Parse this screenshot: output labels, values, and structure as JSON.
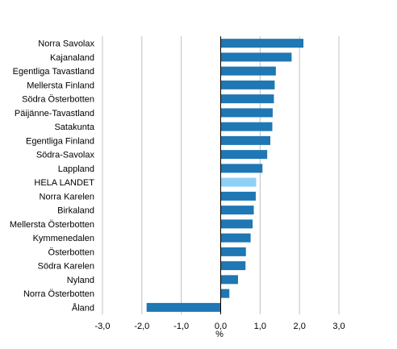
{
  "chart_data": {
    "type": "bar",
    "orientation": "horizontal",
    "categories": [
      "Norra Savolax",
      "Kajanaland",
      "Egentliga Tavastland",
      "Mellersta Finland",
      "Södra Österbotten",
      "Päijänne-Tavastland",
      "Satakunta",
      "Egentliga Finland",
      "Södra-Savolax",
      "Lappland",
      "HELA LANDET",
      "Norra Karelen",
      "Birkaland",
      "Mellersta Österbotten",
      "Kymmenedalen",
      "Österbotten",
      "Södra Karelen",
      "Nyland",
      "Norra Österbotten",
      "Åland"
    ],
    "values": [
      2.1,
      1.8,
      1.4,
      1.37,
      1.35,
      1.32,
      1.31,
      1.26,
      1.18,
      1.06,
      0.9,
      0.89,
      0.84,
      0.81,
      0.76,
      0.64,
      0.63,
      0.44,
      0.22,
      -1.88
    ],
    "highlight_category": "HELA LANDET",
    "colors": {
      "bar": "#1f77b4",
      "highlight": "#8fd0f7",
      "grid": "#c0c0c0",
      "axis": "#000000"
    },
    "xlim": [
      -3.0,
      3.0
    ],
    "xticks": [
      -3.0,
      -2.0,
      -1.0,
      0.0,
      1.0,
      2.0,
      3.0
    ],
    "xtick_labels": [
      "-3,0",
      "-2,0",
      "-1,0",
      "0,0",
      "1,0",
      "2,0",
      "3,0"
    ],
    "xlabel": "%",
    "grid": true,
    "legend": "none"
  }
}
